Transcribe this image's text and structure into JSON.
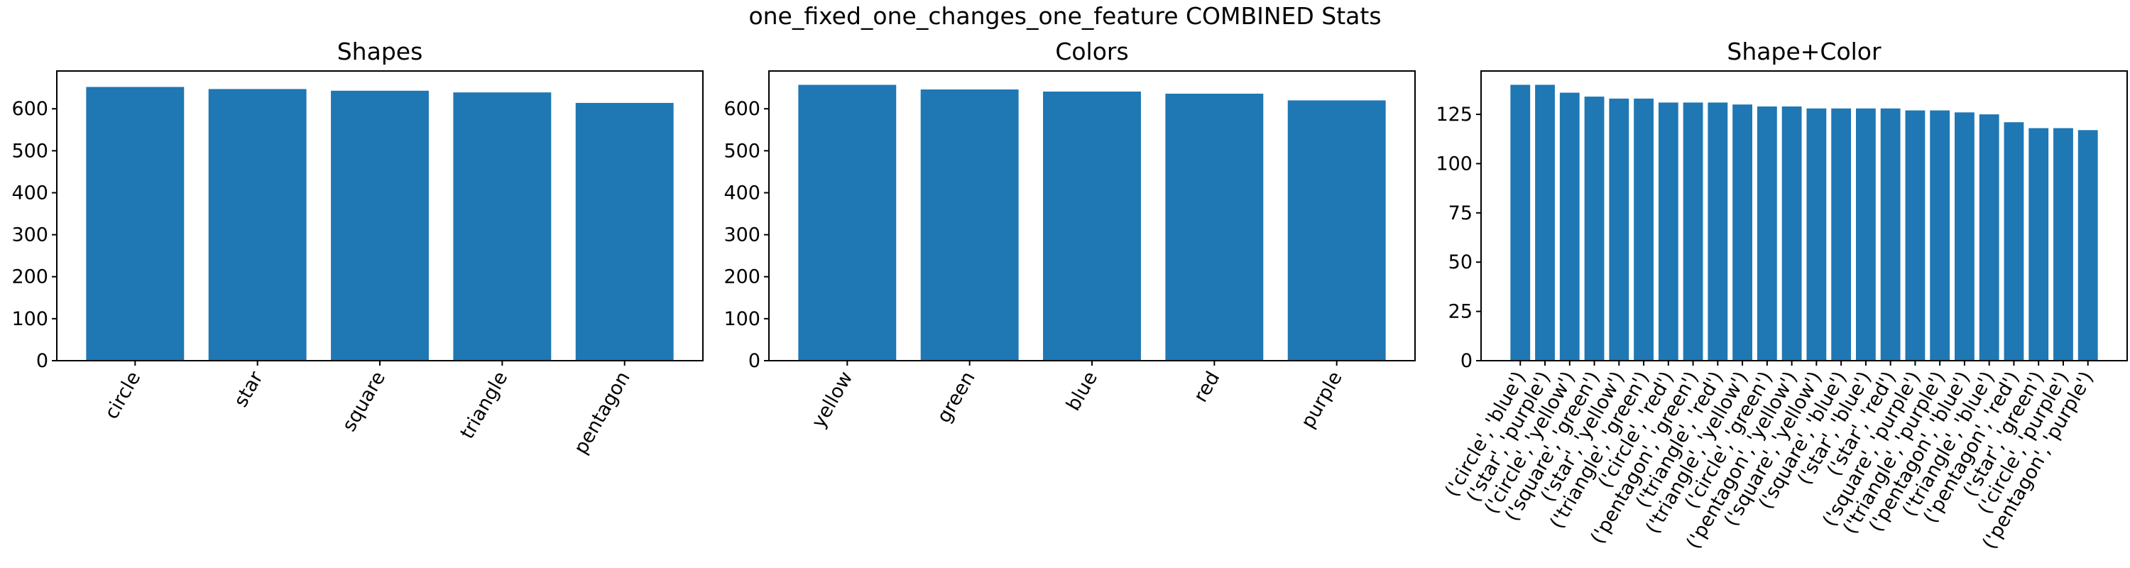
{
  "figure": {
    "suptitle": "one_fixed_one_changes_one_feature COMBINED Stats"
  },
  "colors": {
    "bar": "#1f77b4",
    "axes": "#000000",
    "background": "#ffffff"
  },
  "chart_data": [
    {
      "type": "bar",
      "title": "Shapes",
      "xlabel": "",
      "ylabel": "",
      "categories": [
        "circle",
        "star",
        "square",
        "triangle",
        "pentagon"
      ],
      "values": [
        652,
        647,
        643,
        639,
        614
      ],
      "ylim": [
        0,
        690
      ],
      "yticks": [
        0,
        100,
        200,
        300,
        400,
        500,
        600
      ],
      "grid": false,
      "legend": "none"
    },
    {
      "type": "bar",
      "title": "Colors",
      "xlabel": "",
      "ylabel": "",
      "categories": [
        "yellow",
        "green",
        "blue",
        "red",
        "purple"
      ],
      "values": [
        657,
        646,
        641,
        636,
        620
      ],
      "ylim": [
        0,
        690
      ],
      "yticks": [
        0,
        100,
        200,
        300,
        400,
        500,
        600
      ],
      "grid": false,
      "legend": "none"
    },
    {
      "type": "bar",
      "title": "Shape+Color",
      "xlabel": "",
      "ylabel": "",
      "categories": [
        "('circle', 'blue')",
        "('star', 'purple')",
        "('circle', 'yellow')",
        "('square', 'green')",
        "('star', 'yellow')",
        "('triangle', 'green')",
        "('circle', 'red')",
        "('pentagon', 'green')",
        "('triangle', 'red')",
        "('triangle', 'yellow')",
        "('circle', 'green')",
        "('pentagon', 'yellow')",
        "('square', 'yellow')",
        "('square', 'blue')",
        "('star', 'blue')",
        "('star', 'red')",
        "('square', 'purple')",
        "('triangle', 'purple')",
        "('pentagon', 'blue')",
        "('triangle', 'blue')",
        "('pentagon', 'red')",
        "('star', 'green')",
        "('circle', 'purple')",
        "('pentagon', 'purple')"
      ],
      "values": [
        140,
        140,
        136,
        134,
        133,
        133,
        131,
        131,
        131,
        130,
        129,
        129,
        128,
        128,
        128,
        128,
        127,
        127,
        126,
        125,
        121,
        118,
        118,
        117
      ],
      "ylim": [
        0,
        147
      ],
      "yticks": [
        0,
        25,
        50,
        75,
        100,
        125
      ],
      "grid": false,
      "legend": "none"
    }
  ]
}
